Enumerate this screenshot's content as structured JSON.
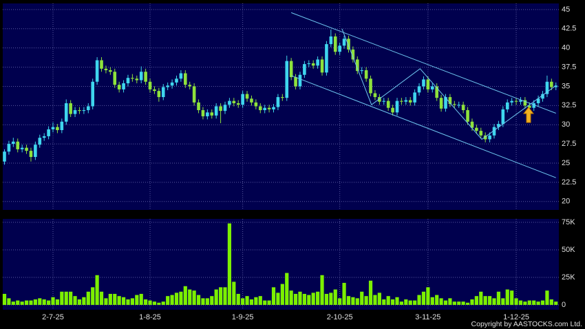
{
  "chart_data": {
    "type": "candlestick",
    "categories": [
      null,
      null,
      null,
      null,
      null,
      null,
      null,
      null,
      null,
      null,
      null,
      "2-7-25",
      null,
      null,
      null,
      null,
      null,
      null,
      null,
      null,
      null,
      null,
      null,
      null,
      null,
      null,
      null,
      null,
      null,
      null,
      null,
      null,
      null,
      "1-8-25",
      null,
      null,
      null,
      null,
      null,
      null,
      null,
      null,
      null,
      null,
      null,
      null,
      null,
      null,
      null,
      null,
      null,
      null,
      null,
      null,
      "1-9-25",
      null,
      null,
      null,
      null,
      null,
      null,
      null,
      null,
      null,
      null,
      null,
      null,
      null,
      null,
      null,
      null,
      null,
      null,
      null,
      null,
      null,
      "2-10-25",
      null,
      null,
      null,
      null,
      null,
      null,
      null,
      null,
      null,
      null,
      null,
      null,
      null,
      null,
      null,
      null,
      null,
      null,
      null,
      "3-11-25",
      null,
      null,
      null,
      null,
      null,
      null,
      null,
      null,
      null,
      null,
      null,
      null,
      null,
      null,
      null,
      null,
      null,
      null,
      null,
      "1-12-25",
      null,
      null,
      null,
      null,
      null,
      null,
      null,
      null,
      null
    ],
    "open": [
      25.2,
      26.5,
      27.5,
      27.8,
      26.8,
      27.0,
      26.6,
      25.8,
      27.4,
      28.3,
      28.5,
      29.4,
      29.7,
      29.3,
      30.4,
      32.8,
      31.4,
      31.9,
      31.8,
      31.9,
      32.4,
      35.6,
      38.4,
      37.3,
      37.1,
      36.9,
      35.2,
      34.6,
      35.4,
      36.1,
      36.0,
      35.8,
      36.9,
      35.6,
      34.6,
      34.4,
      33.6,
      34.9,
      35.1,
      35.5,
      36.0,
      36.7,
      35.2,
      35.0,
      32.9,
      31.9,
      31.1,
      31.6,
      31.2,
      32.4,
      31.8,
      32.6,
      33.1,
      32.8,
      32.6,
      34.0,
      33.4,
      32.9,
      32.4,
      31.9,
      32.2,
      32.0,
      32.3,
      33.6,
      33.5,
      38.3,
      36.2,
      35.0,
      36.5,
      37.9,
      38.0,
      37.7,
      38.5,
      36.8,
      40.5,
      41.5,
      39.5,
      40.3,
      41.2,
      39.8,
      38.5,
      37.0,
      37.1,
      36.0,
      34.1,
      33.6,
      33.0,
      33.1,
      32.2,
      31.6,
      33.1,
      33.0,
      33.2,
      32.9,
      34.2,
      35.0,
      35.9,
      34.6,
      35.0,
      33.5,
      32.1,
      33.6,
      32.7,
      32.6,
      32.6,
      31.9,
      30.4,
      29.6,
      29.2,
      28.6,
      28.1,
      28.6,
      29.7,
      30.1,
      32.0,
      32.9,
      33.1,
      33.0,
      33.2,
      32.5,
      32.2,
      32.8,
      33.4,
      34.0,
      35.6,
      34.9
    ],
    "high": [
      26.8,
      27.9,
      28.3,
      28.2,
      27.4,
      27.4,
      27.0,
      27.8,
      28.7,
      28.9,
      29.8,
      30.3,
      30.1,
      30.8,
      33.3,
      33.2,
      32.3,
      32.3,
      32.3,
      32.8,
      36.0,
      38.8,
      38.8,
      37.7,
      37.5,
      37.3,
      35.6,
      35.8,
      36.5,
      36.6,
      36.4,
      37.6,
      37.3,
      36.0,
      35.0,
      34.8,
      35.3,
      35.5,
      35.9,
      36.4,
      37.1,
      37.1,
      35.6,
      35.4,
      33.3,
      32.3,
      32.0,
      32.0,
      32.8,
      32.8,
      33.0,
      33.5,
      33.5,
      33.2,
      34.4,
      34.4,
      33.8,
      33.3,
      32.8,
      32.6,
      32.6,
      32.7,
      34.0,
      34.0,
      39.0,
      38.7,
      36.6,
      36.9,
      38.3,
      38.4,
      38.4,
      38.9,
      38.9,
      40.9,
      42.4,
      41.9,
      40.7,
      41.6,
      41.6,
      40.2,
      38.9,
      37.5,
      37.5,
      36.4,
      34.5,
      34.0,
      33.5,
      33.5,
      32.6,
      33.5,
      33.5,
      33.6,
      33.6,
      34.6,
      35.4,
      36.3,
      36.3,
      35.4,
      35.4,
      33.9,
      34.0,
      34.0,
      33.1,
      33.0,
      33.0,
      32.3,
      30.8,
      30.0,
      29.6,
      29.0,
      29.0,
      30.1,
      30.5,
      32.4,
      33.3,
      33.5,
      33.5,
      33.6,
      33.6,
      32.9,
      33.2,
      33.8,
      34.4,
      36.4,
      36.0,
      35.5
    ],
    "low": [
      24.8,
      26.1,
      27.1,
      26.4,
      26.4,
      26.2,
      25.2,
      25.4,
      27.0,
      27.9,
      28.1,
      29.0,
      28.9,
      28.9,
      30.0,
      31.0,
      31.0,
      31.4,
      31.4,
      31.5,
      32.0,
      35.2,
      36.9,
      36.7,
      36.5,
      34.8,
      34.2,
      34.2,
      35.0,
      35.6,
      35.4,
      35.4,
      35.2,
      34.2,
      34.0,
      33.0,
      33.2,
      34.5,
      34.7,
      35.1,
      35.6,
      34.8,
      34.6,
      32.5,
      31.5,
      30.7,
      30.7,
      30.8,
      30.8,
      30.2,
      31.4,
      32.2,
      32.4,
      32.2,
      32.2,
      33.0,
      32.5,
      32.0,
      31.5,
      31.5,
      31.6,
      31.6,
      31.9,
      33.1,
      33.1,
      35.8,
      34.6,
      34.6,
      36.1,
      37.5,
      37.3,
      37.3,
      36.4,
      36.4,
      40.1,
      39.1,
      39.1,
      39.9,
      39.4,
      38.1,
      36.6,
      36.6,
      35.6,
      33.7,
      33.2,
      32.6,
      32.6,
      31.8,
      31.2,
      31.2,
      32.6,
      32.6,
      32.5,
      32.5,
      33.8,
      34.6,
      34.2,
      34.2,
      33.1,
      31.7,
      31.7,
      32.3,
      32.2,
      32.2,
      31.5,
      30.0,
      29.2,
      28.8,
      28.2,
      27.7,
      27.7,
      28.2,
      29.3,
      29.7,
      31.6,
      32.5,
      32.6,
      32.6,
      32.1,
      31.8,
      31.8,
      32.4,
      33.0,
      33.6,
      34.5,
      34.5
    ],
    "close": [
      26.5,
      27.5,
      27.8,
      26.8,
      27.0,
      26.6,
      25.8,
      27.4,
      28.3,
      28.5,
      29.4,
      29.7,
      29.3,
      30.4,
      32.8,
      31.4,
      31.9,
      31.8,
      31.9,
      32.4,
      35.6,
      38.4,
      37.3,
      37.1,
      36.9,
      35.2,
      34.6,
      35.4,
      36.1,
      36.0,
      35.8,
      36.9,
      35.6,
      34.6,
      34.4,
      33.6,
      34.9,
      35.1,
      35.5,
      36.0,
      36.7,
      35.2,
      35.0,
      32.9,
      31.9,
      31.1,
      31.6,
      31.2,
      32.4,
      31.8,
      32.6,
      33.1,
      32.8,
      32.6,
      34.0,
      33.4,
      32.9,
      32.4,
      31.9,
      32.2,
      32.0,
      32.3,
      33.6,
      33.5,
      38.3,
      36.2,
      35.0,
      36.5,
      37.9,
      38.0,
      37.7,
      38.5,
      36.8,
      40.5,
      41.5,
      39.5,
      40.3,
      41.2,
      39.8,
      38.5,
      37.0,
      37.1,
      36.0,
      34.1,
      33.6,
      33.0,
      33.1,
      32.2,
      31.6,
      33.1,
      33.0,
      33.2,
      32.9,
      34.2,
      35.0,
      35.9,
      34.6,
      35.0,
      33.5,
      32.1,
      33.6,
      32.7,
      32.6,
      32.6,
      31.9,
      30.4,
      29.6,
      29.2,
      28.6,
      28.1,
      28.6,
      29.7,
      30.1,
      32.0,
      32.9,
      33.1,
      33.0,
      33.2,
      32.5,
      32.2,
      32.8,
      33.4,
      34.0,
      35.6,
      34.9,
      35.1
    ],
    "up_color": "#3fd6ee",
    "down_color": "#8ee23c",
    "ylim": [
      18.9,
      45.8
    ],
    "yticks": [
      20,
      22.5,
      25,
      27.5,
      30,
      32.5,
      35,
      37.5,
      40,
      42.5,
      45
    ],
    "grid": true,
    "trendlines": [
      {
        "x": [
          65,
          125
        ],
        "y": [
          44.6,
          31.5
        ]
      },
      {
        "x": [
          65,
          125
        ],
        "y": [
          36.4,
          23.1
        ]
      },
      {
        "x": [
          76.5,
          83.2,
          94.2,
          108.2,
          125
        ],
        "y": [
          42.5,
          32.6,
          37.3,
          28.1,
          35.1
        ]
      }
    ],
    "trendline_color": "#6fc8f0",
    "volume": {
      "values": [
        10000,
        6000,
        3000,
        4000,
        3000,
        4000,
        4000,
        5000,
        6000,
        5000,
        4000,
        7000,
        5000,
        12000,
        12000,
        12000,
        8000,
        5000,
        7000,
        12000,
        16000,
        27000,
        12000,
        6000,
        10000,
        10000,
        8000,
        7000,
        5000,
        6000,
        9000,
        10000,
        5000,
        4000,
        3000,
        2000,
        3000,
        8000,
        9000,
        11000,
        12000,
        17000,
        14000,
        13000,
        9000,
        6000,
        6000,
        8000,
        14000,
        16000,
        16000,
        74000,
        21000,
        10000,
        6000,
        8000,
        5000,
        7000,
        8000,
        4000,
        4000,
        16000,
        11000,
        19000,
        29000,
        13000,
        10000,
        12000,
        10000,
        9000,
        11000,
        12000,
        27000,
        10000,
        11000,
        14000,
        6000,
        20000,
        8000,
        7000,
        6000,
        12000,
        8000,
        22000,
        9000,
        11000,
        5000,
        8000,
        5000,
        7000,
        3000,
        5000,
        4000,
        4000,
        9000,
        12000,
        16000,
        7000,
        9000,
        6000,
        4000,
        6000,
        3000,
        3000,
        3000,
        2000,
        5000,
        8000,
        12000,
        8000,
        8000,
        6000,
        12000,
        6000,
        14000,
        13000,
        6000,
        4000,
        3000,
        4000,
        4000,
        3000,
        4000,
        13000,
        5000,
        3000
      ],
      "color": "#7cf000",
      "ylim": [
        -4400,
        78100
      ],
      "yticks": [
        0,
        {
          "value": 25000,
          "label": "25K"
        },
        {
          "value": 50000,
          "label": "50K"
        },
        {
          "value": 75000,
          "label": "75K"
        }
      ]
    },
    "copyright": "Copyright by AASTOCKS.com Ltd."
  }
}
